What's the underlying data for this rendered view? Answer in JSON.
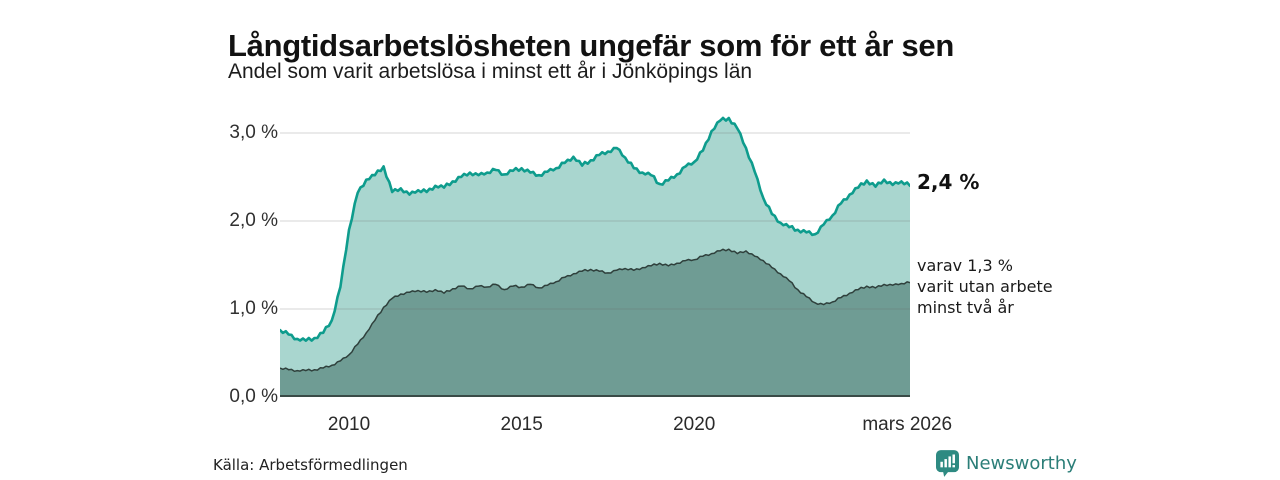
{
  "header": {
    "title": "Långtidsarbetslösheten ungefär som för ett år sen",
    "subtitle": "Andel som varit arbetslösa i minst ett år i Jönköpings län"
  },
  "annotations": {
    "total": "2,4 %",
    "subset": "varav 1,3 %\nvarit utan arbete\nminst två år"
  },
  "footer": {
    "source": "Källa: Arbetsförmedlingen",
    "brand": "Newsworthy",
    "brand_icon": "newsworthy-chart-bubble-icon",
    "brand_color": "#2B7E78"
  },
  "chart_data": {
    "type": "area",
    "title": "Långtidsarbetslösheten ungefär som för ett år sen",
    "subtitle": "Andel som varit arbetslösa i minst ett år i Jönköpings län",
    "x_unit": "year (monthly share of registered unemployed, Jönköpings län)",
    "x_range": [
      2008.0,
      2026.25
    ],
    "ylim": [
      0,
      3.2727
    ],
    "grid": true,
    "grid_color": "rgba(100,100,100,0.28)",
    "baseline_color": "#3A4B47",
    "yticks": [
      {
        "label": "0,0 %",
        "value": 0
      },
      {
        "label": "1,0 %",
        "value": 1
      },
      {
        "label": "2,0 %",
        "value": 2
      },
      {
        "label": "3,0 %",
        "value": 3
      }
    ],
    "xticks": [
      {
        "label": "2010",
        "value": 2010
      },
      {
        "label": "2015",
        "value": 2015
      },
      {
        "label": "2020",
        "value": 2020
      },
      {
        "label": "mars 2026",
        "value": 2026.17
      }
    ],
    "series": [
      {
        "name": "Arbetslösa minst ett år",
        "end_label": "2,4 %",
        "end_value": 2.4,
        "stroke": "#0E9C8D",
        "fill": "#A9D6CF",
        "stroke_width": 2.6,
        "jitter": 1.0,
        "x_start": 2008.0,
        "x_step": 0.25,
        "values": [
          0.76,
          0.71,
          0.66,
          0.64,
          0.67,
          0.73,
          0.87,
          1.25,
          1.9,
          2.32,
          2.47,
          2.52,
          2.62,
          2.33,
          2.37,
          2.3,
          2.35,
          2.33,
          2.4,
          2.38,
          2.45,
          2.5,
          2.55,
          2.52,
          2.55,
          2.58,
          2.53,
          2.57,
          2.6,
          2.55,
          2.52,
          2.56,
          2.6,
          2.66,
          2.73,
          2.63,
          2.69,
          2.75,
          2.79,
          2.83,
          2.72,
          2.6,
          2.55,
          2.52,
          2.42,
          2.46,
          2.53,
          2.62,
          2.67,
          2.8,
          3.02,
          3.14,
          3.17,
          3.05,
          2.83,
          2.56,
          2.26,
          2.08,
          1.98,
          1.93,
          1.9,
          1.87,
          1.85,
          1.96,
          2.06,
          2.2,
          2.3,
          2.38,
          2.46,
          2.39,
          2.47,
          2.41,
          2.45,
          2.4
        ]
      },
      {
        "name": "varav utan arbete minst två år",
        "end_label": "varav 1,3 % varit utan arbete minst två år",
        "end_value": 1.3,
        "stroke": "#2F403C",
        "fill": "#6F9C94",
        "stroke_width": 1.5,
        "jitter": 0.55,
        "x_start": 2008.0,
        "x_step": 0.25,
        "values": [
          0.33,
          0.31,
          0.3,
          0.3,
          0.31,
          0.33,
          0.36,
          0.41,
          0.48,
          0.6,
          0.73,
          0.87,
          1.02,
          1.12,
          1.17,
          1.19,
          1.21,
          1.19,
          1.22,
          1.18,
          1.23,
          1.26,
          1.23,
          1.26,
          1.25,
          1.28,
          1.22,
          1.26,
          1.25,
          1.28,
          1.24,
          1.27,
          1.31,
          1.36,
          1.4,
          1.43,
          1.45,
          1.43,
          1.41,
          1.44,
          1.46,
          1.44,
          1.47,
          1.49,
          1.52,
          1.49,
          1.52,
          1.55,
          1.56,
          1.6,
          1.63,
          1.66,
          1.68,
          1.63,
          1.66,
          1.6,
          1.55,
          1.47,
          1.4,
          1.32,
          1.22,
          1.14,
          1.07,
          1.05,
          1.08,
          1.13,
          1.18,
          1.22,
          1.26,
          1.24,
          1.28,
          1.27,
          1.29,
          1.3
        ]
      }
    ]
  }
}
